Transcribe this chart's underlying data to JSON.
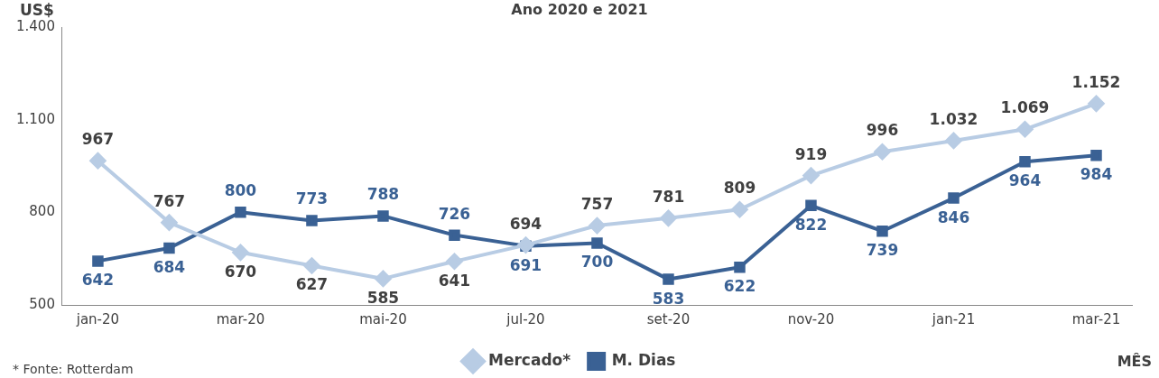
{
  "chart_data": {
    "type": "line",
    "title": "Ano 2020 e 2021",
    "ylabel": "US$",
    "xlabel": "MÊS",
    "annotations": [
      "* Fonte: Rotterdam"
    ],
    "categories": [
      "jan-20",
      null,
      "mar-20",
      null,
      "mai-20",
      null,
      "jul-20",
      null,
      "set-20",
      null,
      "nov-20",
      null,
      "jan-21",
      null,
      "mar-21"
    ],
    "series": [
      {
        "name": "Mercado*",
        "color": "#b8cce4",
        "marker": "diamond",
        "values": [
          967,
          767,
          670,
          627,
          585,
          641,
          694,
          757,
          781,
          809,
          919,
          996,
          1032,
          1069,
          1152
        ],
        "value_labels": [
          "967",
          "767",
          "670",
          "627",
          "585",
          "641",
          "694",
          "757",
          "781",
          "809",
          "919",
          "996",
          "1.032",
          "1.069",
          "1.152"
        ]
      },
      {
        "name": "M. Dias",
        "color": "#3a6194",
        "marker": "square",
        "values": [
          642,
          684,
          800,
          773,
          788,
          726,
          691,
          700,
          583,
          622,
          822,
          739,
          846,
          964,
          984
        ],
        "value_labels": [
          "642",
          "684",
          "800",
          "773",
          "788",
          "726",
          "691",
          "700",
          "583",
          "622",
          "822",
          "739",
          "846",
          "964",
          "984"
        ]
      }
    ],
    "ylim": [
      500,
      1400
    ],
    "yticks": [
      500,
      800,
      {
        "value": 1100,
        "label": "1.100"
      },
      {
        "value": 1400,
        "label": "1.400"
      }
    ],
    "grid": false,
    "legend": "bottom",
    "line_style": "solid"
  }
}
